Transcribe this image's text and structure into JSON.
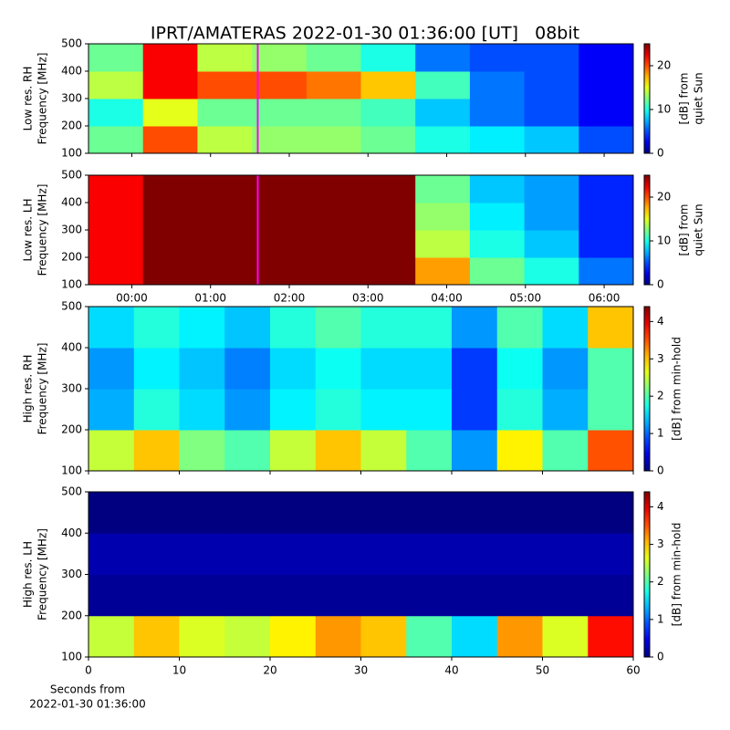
{
  "title": "IPRT/AMATERAS 2022-01-30 01:36:00 [UT]   08bit",
  "charts": [
    {
      "type": "heatmap",
      "ylabel": [
        "Low res. RH",
        "Frequency [MHz]"
      ],
      "clabel": [
        "[dB] from",
        "quiet Sun"
      ],
      "xlim": [
        -0.55,
        6.37
      ],
      "xbins": [
        -0.55,
        0.142,
        0.834,
        1.526,
        2.218,
        2.91,
        3.602,
        4.294,
        4.986,
        5.678,
        6.37
      ],
      "xticks": [
        {
          "value": 0,
          "label": "00:00"
        },
        {
          "value": 1,
          "label": "01:00"
        },
        {
          "value": 2,
          "label": "02:00"
        },
        {
          "value": 3,
          "label": "03:00"
        },
        {
          "value": 4,
          "label": "04:00"
        },
        {
          "value": 5,
          "label": "05:00"
        },
        {
          "value": 6,
          "label": "06:00"
        }
      ],
      "show_xtick_labels": false,
      "ylim": [
        100,
        500
      ],
      "ybins": [
        100,
        200,
        300,
        400,
        500
      ],
      "yticks": [
        100,
        200,
        300,
        400,
        500
      ],
      "clim": [
        0,
        25
      ],
      "cticks": [
        0,
        10,
        20
      ],
      "colormap": "jet",
      "vline": {
        "value": 1.6,
        "color": "#ff00ff"
      },
      "values": [
        [
          12,
          20,
          14,
          13,
          13,
          12,
          10,
          9,
          8,
          5
        ],
        [
          10,
          15,
          12,
          12,
          12,
          11,
          8,
          6,
          5,
          3
        ],
        [
          14,
          22,
          20,
          20,
          19,
          17,
          11,
          6,
          5,
          3
        ],
        [
          12,
          22,
          14,
          13,
          12,
          10,
          6,
          5,
          5,
          3
        ]
      ]
    },
    {
      "type": "heatmap",
      "ylabel": [
        "Low res. LH",
        "Frequency [MHz]"
      ],
      "clabel": [
        "[dB] from",
        "quiet Sun"
      ],
      "xlim": [
        -0.55,
        6.37
      ],
      "xbins": [
        -0.55,
        0.142,
        0.834,
        1.526,
        2.218,
        2.91,
        3.602,
        4.294,
        4.986,
        5.678,
        6.37
      ],
      "xticks": [
        {
          "value": 0,
          "label": "00:00"
        },
        {
          "value": 1,
          "label": "01:00"
        },
        {
          "value": 2,
          "label": "02:00"
        },
        {
          "value": 3,
          "label": "03:00"
        },
        {
          "value": 4,
          "label": "04:00"
        },
        {
          "value": 5,
          "label": "05:00"
        },
        {
          "value": 6,
          "label": "06:00"
        }
      ],
      "show_xtick_labels": true,
      "ylim": [
        100,
        500
      ],
      "ybins": [
        100,
        200,
        300,
        400,
        500
      ],
      "yticks": [
        100,
        200,
        300,
        400,
        500
      ],
      "clim": [
        0,
        25
      ],
      "cticks": [
        0,
        10,
        20
      ],
      "colormap": "jet",
      "vline": {
        "value": 1.6,
        "color": "#ff00ff"
      },
      "values": [
        [
          22,
          25,
          25,
          25,
          25,
          25,
          18,
          12,
          10,
          6
        ],
        [
          22,
          25,
          25,
          25,
          25,
          25,
          14,
          10,
          8,
          4
        ],
        [
          22,
          25,
          25,
          25,
          25,
          25,
          13,
          9,
          7,
          4
        ],
        [
          22,
          25,
          25,
          25,
          25,
          25,
          12,
          8,
          7,
          4
        ]
      ]
    },
    {
      "type": "heatmap",
      "ylabel": [
        "High res. RH",
        "Frequency [MHz]"
      ],
      "clabel": [
        "[dB] from min-hold"
      ],
      "xlim": [
        0,
        60
      ],
      "xbins": [
        0,
        5,
        10,
        15,
        20,
        25,
        30,
        35,
        40,
        45,
        50,
        55,
        60
      ],
      "xticks": [
        0,
        10,
        20,
        30,
        40,
        50,
        60
      ],
      "show_xtick_labels": false,
      "ylim": [
        100,
        500
      ],
      "ybins": [
        100,
        200,
        300,
        400,
        500
      ],
      "yticks": [
        100,
        200,
        300,
        400,
        500
      ],
      "clim": [
        0,
        4.4
      ],
      "cticks": [
        0,
        1,
        2,
        3,
        4
      ],
      "colormap": "jet",
      "values": [
        [
          2.5,
          3,
          2.2,
          2,
          2.5,
          3,
          2.5,
          2,
          1.2,
          2.8,
          2,
          3.5
        ],
        [
          1.3,
          1.8,
          1.5,
          1.2,
          1.6,
          1.8,
          1.6,
          1.6,
          0.8,
          1.8,
          1.3,
          2
        ],
        [
          1.2,
          1.6,
          1.4,
          1.1,
          1.5,
          1.7,
          1.5,
          1.5,
          0.8,
          1.7,
          1.2,
          2
        ],
        [
          1.5,
          1.8,
          1.6,
          1.4,
          1.8,
          2,
          1.8,
          1.8,
          1.2,
          2,
          1.5,
          3
        ]
      ]
    },
    {
      "type": "heatmap",
      "ylabel": [
        "High res. LH",
        "Frequency [MHz]"
      ],
      "clabel": [
        "[dB] from min-hold"
      ],
      "xlim": [
        0,
        60
      ],
      "xbins": [
        0,
        5,
        10,
        15,
        20,
        25,
        30,
        35,
        40,
        45,
        50,
        55,
        60
      ],
      "xticks": [
        0,
        10,
        20,
        30,
        40,
        50,
        60
      ],
      "show_xtick_labels": true,
      "xlabel": [
        "Seconds from",
        "2022-01-30 01:36:00"
      ],
      "ylim": [
        100,
        500
      ],
      "ybins": [
        100,
        200,
        300,
        400,
        500
      ],
      "yticks": [
        100,
        200,
        300,
        400,
        500
      ],
      "clim": [
        0,
        4.4
      ],
      "cticks": [
        0,
        1,
        2,
        3,
        4
      ],
      "colormap": "jet",
      "values": [
        [
          2.5,
          3,
          2.6,
          2.5,
          2.8,
          3.2,
          3,
          2,
          1.5,
          3.2,
          2.6,
          3.8
        ],
        [
          0.1,
          0.1,
          0.1,
          0.1,
          0.1,
          0.1,
          0.1,
          0.1,
          0.1,
          0.1,
          0.1,
          0.1
        ],
        [
          0.2,
          0.2,
          0.2,
          0.2,
          0.2,
          0.2,
          0.2,
          0.2,
          0.2,
          0.2,
          0.2,
          0.2
        ],
        [
          0,
          0,
          0,
          0,
          0,
          0,
          0,
          0,
          0,
          0,
          0,
          0
        ]
      ]
    }
  ]
}
